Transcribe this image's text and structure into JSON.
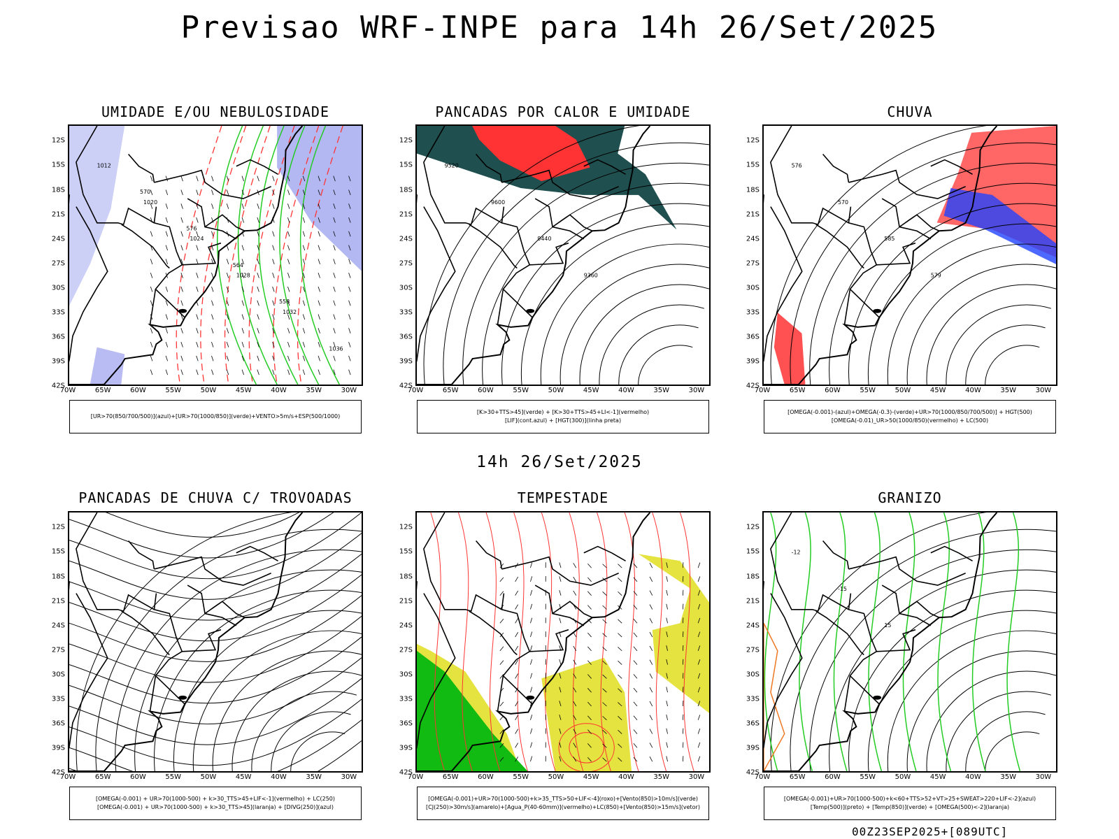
{
  "header": {
    "title": "Previsao WRF-INPE  para 14h 26/Set/2025",
    "mid_time": "14h 26/Set/2025",
    "run_info": "00Z23SEP2025+[089UTC]"
  },
  "axes": {
    "lat_labels": [
      "12S",
      "15S",
      "18S",
      "21S",
      "24S",
      "27S",
      "30S",
      "33S",
      "36S",
      "39S",
      "42S"
    ],
    "lon_labels": [
      "70W",
      "65W",
      "60W",
      "55W",
      "50W",
      "45W",
      "40W",
      "35W",
      "30W"
    ]
  },
  "panels": [
    {
      "title": "UMIDADE E/OU NEBULOSIDADE",
      "legend": [
        "[UR>70(850/700/500)](azul)+[UR>70(1000/850)](verde)+VENTO>5m/s+ESP(500/1000)"
      ],
      "labels": [
        "1012",
        "1020",
        "1024",
        "1028",
        "1032",
        "1036",
        "570",
        "576",
        "564",
        "558"
      ]
    },
    {
      "title": "PANCADAS POR CALOR E UMIDADE",
      "legend": [
        "[K>30+TTS>45](verde) + [K>30+TTS>45+LI<-1](vermelho)",
        "[LIF](cont.azul) + [HGT(300)](linha preta)"
      ],
      "labels": [
        "9520",
        "9600",
        "9440",
        "9360"
      ]
    },
    {
      "title": "CHUVA",
      "legend": [
        "[OMEGA(-0.001)-(azul)+OMEGA(-0.3)-(verde)+UR>70(1000/850/700/500)] + HGT(500)",
        "[OMEGA(-0.01)_UR>50(1000/850)(vermelho) + LC(500)"
      ],
      "labels": [
        "576",
        "570",
        "585",
        "579"
      ]
    },
    {
      "title": "PANCADAS DE CHUVA C/ TROVOADAS",
      "legend": [
        "[OMEGA(-0.001) + UR>70(1000-500) + k>30_TTS>45+LIF<-1](vermelho) + LC(250)",
        "[OMEGA(-0.001) + UR>70(1000-500) + k>30_TTS>45](laranja) + [DIVG(250)](azul)"
      ],
      "labels": []
    },
    {
      "title": "TEMPESTADE",
      "legend": [
        "[OMEGA(-0.001)+UR>70(1000-500)+k>35_TTS>50+LIF<-4](roxo)+[Vento(850)>10m/s](verde)",
        "[CJ(250)>30m/s](amarelo)+[Agua_P(40-60mm)](vermelho)+LC(850)+[Vento(850)>15m/s](vetor)"
      ],
      "labels": []
    },
    {
      "title": "GRANIZO",
      "legend": [
        "[OMEGA(-0.001)+UR>70(1000-500)+k<60+TTS>52+VT>25+SWEAT>220+LIF<-2](azul)",
        "[Temp(500)](preto) + [Temp(850)](verde) + [OMEGA(500)<-2](laranja)"
      ],
      "labels": [
        "-12",
        "-15",
        "15"
      ]
    }
  ],
  "colors": {
    "humid_high": "#9aa0ee",
    "humid_low": "#22cc22",
    "convection": "#ff3333",
    "warm_humid": "#1f4f4f",
    "lif": "#2244ff",
    "jet": "#e2e02a",
    "wind850": "#11bb11",
    "hail_orange": "#ee7722"
  }
}
